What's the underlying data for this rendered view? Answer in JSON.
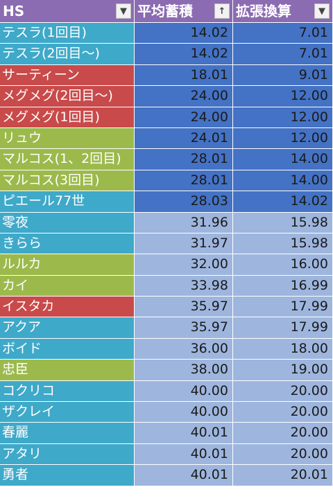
{
  "header": {
    "col1": "HS",
    "col2": "平均蓄積",
    "col3": "拡張換算",
    "filter_symbol": "▼",
    "sort_symbol": "↑"
  },
  "colors": {
    "header": "#8b6bb1",
    "name_cyan": "#3fa9c9",
    "name_red": "#c94a4a",
    "name_green": "#9cba4c",
    "value_dark": "#4472c4",
    "value_light": "#9eb6de"
  },
  "rows": [
    {
      "name": "テスラ(1回目)",
      "avg": "14.02",
      "ext": "7.01",
      "color": "cyan",
      "shade": "dark"
    },
    {
      "name": "テスラ(2回目～)",
      "avg": "14.02",
      "ext": "7.01",
      "color": "cyan",
      "shade": "dark"
    },
    {
      "name": "サーティーン",
      "avg": "18.01",
      "ext": "9.01",
      "color": "red",
      "shade": "dark"
    },
    {
      "name": "メグメグ(2回目～)",
      "avg": "24.00",
      "ext": "12.00",
      "color": "red",
      "shade": "dark"
    },
    {
      "name": "メグメグ(1回目)",
      "avg": "24.00",
      "ext": "12.00",
      "color": "red",
      "shade": "dark"
    },
    {
      "name": "リュウ",
      "avg": "24.01",
      "ext": "12.00",
      "color": "green",
      "shade": "dark"
    },
    {
      "name": "マルコス(1、2回目)",
      "avg": "28.01",
      "ext": "14.00",
      "color": "green",
      "shade": "dark"
    },
    {
      "name": "マルコス(3回目)",
      "avg": "28.01",
      "ext": "14.00",
      "color": "green",
      "shade": "dark"
    },
    {
      "name": "ピエール77世",
      "avg": "28.03",
      "ext": "14.02",
      "color": "cyan",
      "shade": "dark"
    },
    {
      "name": "零夜",
      "avg": "31.96",
      "ext": "15.98",
      "color": "cyan",
      "shade": "light"
    },
    {
      "name": "きらら",
      "avg": "31.97",
      "ext": "15.98",
      "color": "cyan",
      "shade": "light"
    },
    {
      "name": "ルルカ",
      "avg": "32.00",
      "ext": "16.00",
      "color": "green",
      "shade": "light"
    },
    {
      "name": "カイ",
      "avg": "33.98",
      "ext": "16.99",
      "color": "green",
      "shade": "light"
    },
    {
      "name": "イスタカ",
      "avg": "35.97",
      "ext": "17.99",
      "color": "red",
      "shade": "light"
    },
    {
      "name": "アクア",
      "avg": "35.97",
      "ext": "17.99",
      "color": "cyan",
      "shade": "light"
    },
    {
      "name": "ボイド",
      "avg": "36.00",
      "ext": "18.00",
      "color": "cyan",
      "shade": "light"
    },
    {
      "name": "忠臣",
      "avg": "38.00",
      "ext": "19.00",
      "color": "green",
      "shade": "light"
    },
    {
      "name": "コクリコ",
      "avg": "40.00",
      "ext": "20.00",
      "color": "cyan",
      "shade": "light"
    },
    {
      "name": "ザクレイ",
      "avg": "40.00",
      "ext": "20.00",
      "color": "cyan",
      "shade": "light"
    },
    {
      "name": "春麗",
      "avg": "40.01",
      "ext": "20.00",
      "color": "cyan",
      "shade": "light"
    },
    {
      "name": "アタリ",
      "avg": "40.01",
      "ext": "20.00",
      "color": "cyan",
      "shade": "light"
    },
    {
      "name": "勇者",
      "avg": "40.01",
      "ext": "20.01",
      "color": "cyan",
      "shade": "light"
    }
  ]
}
